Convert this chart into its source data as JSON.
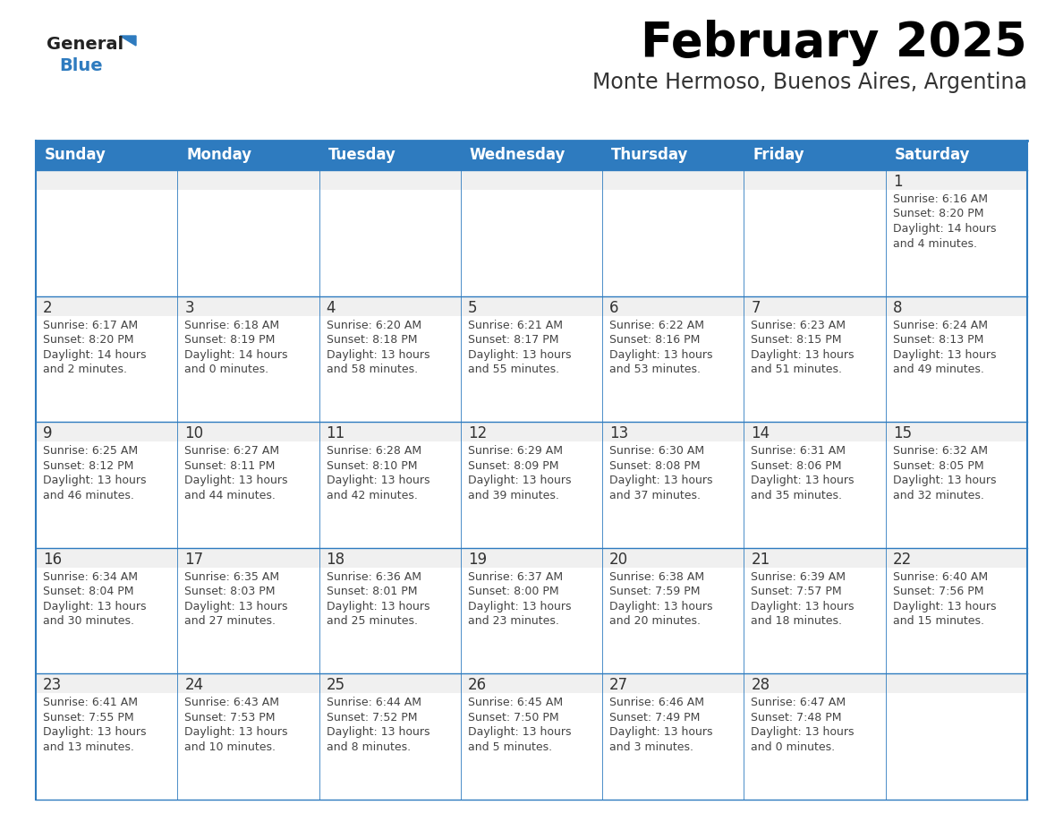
{
  "title": "February 2025",
  "subtitle": "Monte Hermoso, Buenos Aires, Argentina",
  "header_color": "#2E7BBF",
  "header_text_color": "#FFFFFF",
  "border_color": "#2E7BBF",
  "text_color": "#444444",
  "day_number_color": "#333333",
  "days_of_week": [
    "Sunday",
    "Monday",
    "Tuesday",
    "Wednesday",
    "Thursday",
    "Friday",
    "Saturday"
  ],
  "weeks": [
    [
      {
        "day": null,
        "lines": []
      },
      {
        "day": null,
        "lines": []
      },
      {
        "day": null,
        "lines": []
      },
      {
        "day": null,
        "lines": []
      },
      {
        "day": null,
        "lines": []
      },
      {
        "day": null,
        "lines": []
      },
      {
        "day": 1,
        "lines": [
          "Sunrise: 6:16 AM",
          "Sunset: 8:20 PM",
          "Daylight: 14 hours",
          "and 4 minutes."
        ]
      }
    ],
    [
      {
        "day": 2,
        "lines": [
          "Sunrise: 6:17 AM",
          "Sunset: 8:20 PM",
          "Daylight: 14 hours",
          "and 2 minutes."
        ]
      },
      {
        "day": 3,
        "lines": [
          "Sunrise: 6:18 AM",
          "Sunset: 8:19 PM",
          "Daylight: 14 hours",
          "and 0 minutes."
        ]
      },
      {
        "day": 4,
        "lines": [
          "Sunrise: 6:20 AM",
          "Sunset: 8:18 PM",
          "Daylight: 13 hours",
          "and 58 minutes."
        ]
      },
      {
        "day": 5,
        "lines": [
          "Sunrise: 6:21 AM",
          "Sunset: 8:17 PM",
          "Daylight: 13 hours",
          "and 55 minutes."
        ]
      },
      {
        "day": 6,
        "lines": [
          "Sunrise: 6:22 AM",
          "Sunset: 8:16 PM",
          "Daylight: 13 hours",
          "and 53 minutes."
        ]
      },
      {
        "day": 7,
        "lines": [
          "Sunrise: 6:23 AM",
          "Sunset: 8:15 PM",
          "Daylight: 13 hours",
          "and 51 minutes."
        ]
      },
      {
        "day": 8,
        "lines": [
          "Sunrise: 6:24 AM",
          "Sunset: 8:13 PM",
          "Daylight: 13 hours",
          "and 49 minutes."
        ]
      }
    ],
    [
      {
        "day": 9,
        "lines": [
          "Sunrise: 6:25 AM",
          "Sunset: 8:12 PM",
          "Daylight: 13 hours",
          "and 46 minutes."
        ]
      },
      {
        "day": 10,
        "lines": [
          "Sunrise: 6:27 AM",
          "Sunset: 8:11 PM",
          "Daylight: 13 hours",
          "and 44 minutes."
        ]
      },
      {
        "day": 11,
        "lines": [
          "Sunrise: 6:28 AM",
          "Sunset: 8:10 PM",
          "Daylight: 13 hours",
          "and 42 minutes."
        ]
      },
      {
        "day": 12,
        "lines": [
          "Sunrise: 6:29 AM",
          "Sunset: 8:09 PM",
          "Daylight: 13 hours",
          "and 39 minutes."
        ]
      },
      {
        "day": 13,
        "lines": [
          "Sunrise: 6:30 AM",
          "Sunset: 8:08 PM",
          "Daylight: 13 hours",
          "and 37 minutes."
        ]
      },
      {
        "day": 14,
        "lines": [
          "Sunrise: 6:31 AM",
          "Sunset: 8:06 PM",
          "Daylight: 13 hours",
          "and 35 minutes."
        ]
      },
      {
        "day": 15,
        "lines": [
          "Sunrise: 6:32 AM",
          "Sunset: 8:05 PM",
          "Daylight: 13 hours",
          "and 32 minutes."
        ]
      }
    ],
    [
      {
        "day": 16,
        "lines": [
          "Sunrise: 6:34 AM",
          "Sunset: 8:04 PM",
          "Daylight: 13 hours",
          "and 30 minutes."
        ]
      },
      {
        "day": 17,
        "lines": [
          "Sunrise: 6:35 AM",
          "Sunset: 8:03 PM",
          "Daylight: 13 hours",
          "and 27 minutes."
        ]
      },
      {
        "day": 18,
        "lines": [
          "Sunrise: 6:36 AM",
          "Sunset: 8:01 PM",
          "Daylight: 13 hours",
          "and 25 minutes."
        ]
      },
      {
        "day": 19,
        "lines": [
          "Sunrise: 6:37 AM",
          "Sunset: 8:00 PM",
          "Daylight: 13 hours",
          "and 23 minutes."
        ]
      },
      {
        "day": 20,
        "lines": [
          "Sunrise: 6:38 AM",
          "Sunset: 7:59 PM",
          "Daylight: 13 hours",
          "and 20 minutes."
        ]
      },
      {
        "day": 21,
        "lines": [
          "Sunrise: 6:39 AM",
          "Sunset: 7:57 PM",
          "Daylight: 13 hours",
          "and 18 minutes."
        ]
      },
      {
        "day": 22,
        "lines": [
          "Sunrise: 6:40 AM",
          "Sunset: 7:56 PM",
          "Daylight: 13 hours",
          "and 15 minutes."
        ]
      }
    ],
    [
      {
        "day": 23,
        "lines": [
          "Sunrise: 6:41 AM",
          "Sunset: 7:55 PM",
          "Daylight: 13 hours",
          "and 13 minutes."
        ]
      },
      {
        "day": 24,
        "lines": [
          "Sunrise: 6:43 AM",
          "Sunset: 7:53 PM",
          "Daylight: 13 hours",
          "and 10 minutes."
        ]
      },
      {
        "day": 25,
        "lines": [
          "Sunrise: 6:44 AM",
          "Sunset: 7:52 PM",
          "Daylight: 13 hours",
          "and 8 minutes."
        ]
      },
      {
        "day": 26,
        "lines": [
          "Sunrise: 6:45 AM",
          "Sunset: 7:50 PM",
          "Daylight: 13 hours",
          "and 5 minutes."
        ]
      },
      {
        "day": 27,
        "lines": [
          "Sunrise: 6:46 AM",
          "Sunset: 7:49 PM",
          "Daylight: 13 hours",
          "and 3 minutes."
        ]
      },
      {
        "day": 28,
        "lines": [
          "Sunrise: 6:47 AM",
          "Sunset: 7:48 PM",
          "Daylight: 13 hours",
          "and 0 minutes."
        ]
      },
      {
        "day": null,
        "lines": []
      }
    ]
  ],
  "logo_general_color": "#222222",
  "logo_blue_color": "#2E7BBF",
  "title_fontsize": 38,
  "subtitle_fontsize": 17,
  "header_fontsize": 12,
  "day_num_fontsize": 12,
  "cell_text_fontsize": 9
}
